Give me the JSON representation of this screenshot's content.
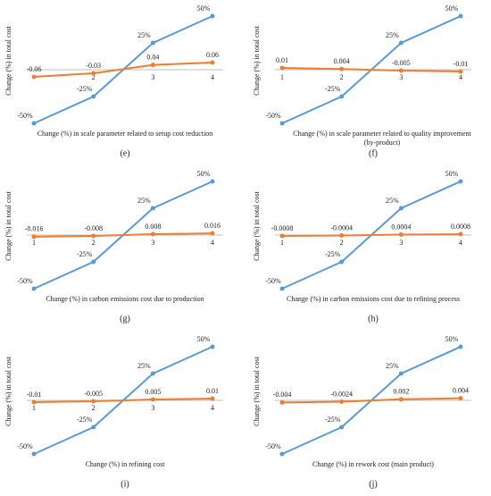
{
  "chart_data": [
    {
      "type": "line",
      "label": "(e)",
      "x_label": "Change (%) in scale parameter related to setup cost reduction",
      "y_label": "Change (%) in total cost",
      "categories": [
        null,
        "2",
        "3",
        "4"
      ],
      "ylim": [
        -50,
        50
      ],
      "y2lim": [
        -0.45,
        0.45
      ],
      "series": [
        {
          "color": "#5b9bd5",
          "values": [
            -50,
            -25,
            25,
            50
          ],
          "value_labels": [
            "-50%",
            "-25%",
            "25%",
            "50%"
          ]
        },
        {
          "color": "#ed7d31",
          "axis": "y2",
          "values": [
            -0.06,
            -0.03,
            0.04,
            0.06
          ]
        }
      ]
    },
    {
      "type": "line",
      "label": "(f)",
      "x_label": "Change (%) in scale parameter related to quality improvement (by-product)",
      "y_label": "Change (%) in total cost",
      "categories": [
        "1",
        "2",
        "3",
        "4"
      ],
      "ylim": [
        -50,
        50
      ],
      "y2lim": [
        -0.3,
        0.3
      ],
      "series": [
        {
          "color": "#5b9bd5",
          "values": [
            -50,
            -25,
            25,
            50
          ],
          "value_labels": [
            "-50%",
            "-25%",
            "25%",
            "50%"
          ]
        },
        {
          "color": "#ed7d31",
          "axis": "y2",
          "values": [
            0.01,
            0.004,
            -0.005,
            -0.01
          ]
        }
      ]
    },
    {
      "type": "line",
      "label": "(g)",
      "x_label": "Change (%) in carbon emissions cost due to production",
      "y_label": "Change (%) in total cost",
      "categories": [
        "1",
        "2",
        "3",
        "4"
      ],
      "ylim": [
        -50,
        50
      ],
      "y2lim": [
        -0.5,
        0.5
      ],
      "series": [
        {
          "color": "#5b9bd5",
          "values": [
            -50,
            -25,
            25,
            50
          ],
          "value_labels": [
            "-50%",
            "-25%",
            "25%",
            "50%"
          ]
        },
        {
          "color": "#ed7d31",
          "axis": "y2",
          "values": [
            -0.016,
            -0.008,
            0.008,
            0.016
          ]
        }
      ]
    },
    {
      "type": "line",
      "label": "(h)",
      "x_label": "Change (%) in carbon emissions cost due to refining process",
      "y_label": "Change (%) in total cost",
      "categories": [
        "1",
        "2",
        "3",
        "4"
      ],
      "ylim": [
        -50,
        50
      ],
      "y2lim": [
        -0.05,
        0.05
      ],
      "series": [
        {
          "color": "#5b9bd5",
          "values": [
            -50,
            -25,
            25,
            50
          ],
          "value_labels": [
            "-50%",
            "-25%",
            "25%",
            "50%"
          ]
        },
        {
          "color": "#ed7d31",
          "axis": "y2",
          "values": [
            -0.0008,
            -0.0004,
            0.0004,
            0.0008
          ]
        }
      ]
    },
    {
      "type": "line",
      "label": "(i)",
      "x_label": "Change (%) in refining cost",
      "y_label": "Change (%) in total cost",
      "categories": [
        "1",
        "2",
        "3",
        "4"
      ],
      "ylim": [
        -50,
        50
      ],
      "y2lim": [
        -0.3,
        0.3
      ],
      "series": [
        {
          "color": "#5b9bd5",
          "values": [
            -50,
            -25,
            25,
            50
          ],
          "value_labels": [
            "-50%",
            "-25%",
            "25%",
            "50%"
          ]
        },
        {
          "color": "#ed7d31",
          "axis": "y2",
          "values": [
            -0.01,
            -0.005,
            0.005,
            0.01
          ]
        }
      ]
    },
    {
      "type": "line",
      "label": "(j)",
      "x_label": "Change (%) in rework cost (main product)",
      "y_label": "Change (%) in total cost",
      "categories": [
        null,
        null,
        null,
        null
      ],
      "ylim": [
        -50,
        50
      ],
      "y2lim": [
        -0.1,
        0.1
      ],
      "series": [
        {
          "color": "#5b9bd5",
          "values": [
            -50,
            -25,
            25,
            50
          ],
          "value_labels": [
            "-50%",
            "-25%",
            "25%",
            "50%"
          ]
        },
        {
          "color": "#ed7d31",
          "axis": "y2",
          "values": [
            -0.004,
            -0.0024,
            0.002,
            0.004
          ]
        }
      ]
    }
  ]
}
